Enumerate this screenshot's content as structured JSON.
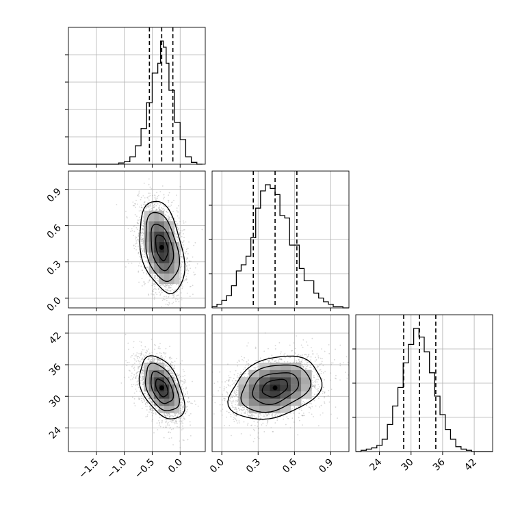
{
  "chart_data": {
    "type": "corner",
    "grid": true,
    "colors": {
      "line": "#000000",
      "grid": "#b0b0b0",
      "points": "#8c8c8c"
    },
    "parameters": [
      {
        "range": [
          -2.0,
          0.45
        ],
        "ticks": [
          -1.5,
          -1.0,
          -0.5,
          0.0
        ],
        "tick_labels": [
          "−1.5",
          "−1.0",
          "−0.5",
          "0.0"
        ],
        "quantiles": [
          -0.55,
          -0.33,
          -0.13
        ]
      },
      {
        "range": [
          -0.08,
          1.05
        ],
        "ticks": [
          0.0,
          0.3,
          0.6,
          0.9
        ],
        "tick_labels": [
          "0.0",
          "0.3",
          "0.6",
          "0.9"
        ],
        "quantiles": [
          0.26,
          0.44,
          0.62
        ]
      },
      {
        "range": [
          19.5,
          45.5
        ],
        "ticks": [
          24,
          30,
          36,
          42
        ],
        "tick_labels": [
          "24",
          "30",
          "36",
          "42"
        ],
        "quantiles": [
          28.6,
          31.6,
          34.7
        ]
      }
    ],
    "histograms": [
      {
        "bins": [
          [
            -2.0,
            -1.9,
            0
          ],
          [
            -1.9,
            -1.8,
            0
          ],
          [
            -1.8,
            -1.7,
            0
          ],
          [
            -1.7,
            -1.6,
            0
          ],
          [
            -1.6,
            -1.5,
            0
          ],
          [
            -1.5,
            -1.4,
            0
          ],
          [
            -1.4,
            -1.3,
            0
          ],
          [
            -1.3,
            -1.2,
            0
          ],
          [
            -1.2,
            -1.1,
            0
          ],
          [
            -1.1,
            -1.0,
            0.01
          ],
          [
            -1.0,
            -0.9,
            0.02
          ],
          [
            -0.9,
            -0.8,
            0.06
          ],
          [
            -0.8,
            -0.7,
            0.15
          ],
          [
            -0.7,
            -0.6,
            0.29
          ],
          [
            -0.6,
            -0.5,
            0.5
          ],
          [
            -0.5,
            -0.4,
            0.74
          ],
          [
            -0.4,
            -0.35,
            0.82
          ],
          [
            -0.35,
            -0.3,
            1.0
          ],
          [
            -0.3,
            -0.25,
            0.95
          ],
          [
            -0.25,
            -0.2,
            0.82
          ],
          [
            -0.2,
            -0.1,
            0.6
          ],
          [
            -0.1,
            0.0,
            0.34
          ],
          [
            0.0,
            0.1,
            0.2
          ],
          [
            0.1,
            0.2,
            0.06
          ],
          [
            0.2,
            0.3,
            0.015
          ],
          [
            0.3,
            0.4,
            0
          ]
        ]
      },
      {
        "bins": [
          [
            -0.08,
            -0.04,
            0.01
          ],
          [
            -0.04,
            0.0,
            0.03
          ],
          [
            0.0,
            0.04,
            0.06
          ],
          [
            0.04,
            0.08,
            0.1
          ],
          [
            0.08,
            0.12,
            0.18
          ],
          [
            0.12,
            0.16,
            0.3
          ],
          [
            0.16,
            0.2,
            0.35
          ],
          [
            0.2,
            0.24,
            0.42
          ],
          [
            0.24,
            0.28,
            0.57
          ],
          [
            0.28,
            0.32,
            0.81
          ],
          [
            0.32,
            0.36,
            0.95
          ],
          [
            0.36,
            0.4,
            1.0
          ],
          [
            0.4,
            0.44,
            0.97
          ],
          [
            0.44,
            0.48,
            0.92
          ],
          [
            0.48,
            0.52,
            0.75
          ],
          [
            0.52,
            0.56,
            0.73
          ],
          [
            0.56,
            0.6,
            0.51
          ],
          [
            0.6,
            0.64,
            0.51
          ],
          [
            0.64,
            0.68,
            0.32
          ],
          [
            0.68,
            0.72,
            0.22
          ],
          [
            0.72,
            0.76,
            0.22
          ],
          [
            0.76,
            0.8,
            0.12
          ],
          [
            0.8,
            0.84,
            0.08
          ],
          [
            0.84,
            0.88,
            0.05
          ],
          [
            0.88,
            0.92,
            0.03
          ],
          [
            0.92,
            0.96,
            0.01
          ],
          [
            0.96,
            1.0,
            0.01
          ],
          [
            1.0,
            1.05,
            0
          ]
        ]
      },
      {
        "bins": [
          [
            19.5,
            20.5,
            0
          ],
          [
            20.5,
            21.5,
            0.01
          ],
          [
            21.5,
            22.5,
            0.02
          ],
          [
            22.5,
            23.5,
            0.03
          ],
          [
            23.5,
            24.5,
            0.05
          ],
          [
            24.5,
            25.5,
            0.1
          ],
          [
            25.5,
            26.5,
            0.22
          ],
          [
            26.5,
            27.5,
            0.37
          ],
          [
            27.5,
            28.5,
            0.52
          ],
          [
            28.5,
            29.5,
            0.72
          ],
          [
            29.5,
            30.5,
            0.87
          ],
          [
            30.5,
            31.5,
            1.0
          ],
          [
            31.5,
            32.5,
            0.93
          ],
          [
            32.5,
            33.5,
            0.81
          ],
          [
            33.5,
            34.5,
            0.64
          ],
          [
            34.5,
            35.5,
            0.45
          ],
          [
            35.5,
            36.5,
            0.3
          ],
          [
            36.5,
            37.5,
            0.18
          ],
          [
            37.5,
            38.5,
            0.1
          ],
          [
            38.5,
            39.5,
            0.04
          ],
          [
            39.5,
            40.5,
            0.02
          ],
          [
            40.5,
            41.5,
            0.01
          ],
          [
            41.5,
            45.5,
            0
          ]
        ]
      }
    ],
    "joints": [
      {
        "x_param": 0,
        "y_param": 1,
        "center": [
          -0.33,
          0.42
        ],
        "sigma": [
          0.2,
          0.19
        ],
        "rho": -0.35
      },
      {
        "x_param": 0,
        "y_param": 2,
        "center": [
          -0.33,
          31.6
        ],
        "sigma": [
          0.2,
          3.0
        ],
        "rho": -0.45
      },
      {
        "x_param": 1,
        "y_param": 2,
        "center": [
          0.44,
          31.6
        ],
        "sigma": [
          0.19,
          3.0
        ],
        "rho": 0.3
      }
    ]
  }
}
